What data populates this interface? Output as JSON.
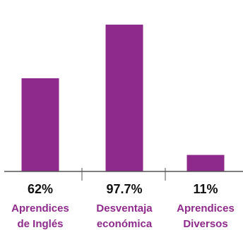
{
  "chart_data": {
    "type": "bar",
    "title": "",
    "xlabel": "",
    "ylabel": "",
    "ylim": [
      0,
      100
    ],
    "grid": false,
    "legend": "none",
    "categories": [
      [
        "Aprendices",
        "de Inglés"
      ],
      [
        "Desventaja",
        "económica"
      ],
      [
        "Aprendices",
        "Diversos"
      ]
    ],
    "values": [
      62,
      97.7,
      11
    ],
    "value_labels": [
      "62%",
      "97.7%",
      "11%"
    ]
  },
  "colors": {
    "bar": "#8e2a8b",
    "category_text": "#8e2a8b",
    "axis": "#555555",
    "value_text": "#111111"
  }
}
